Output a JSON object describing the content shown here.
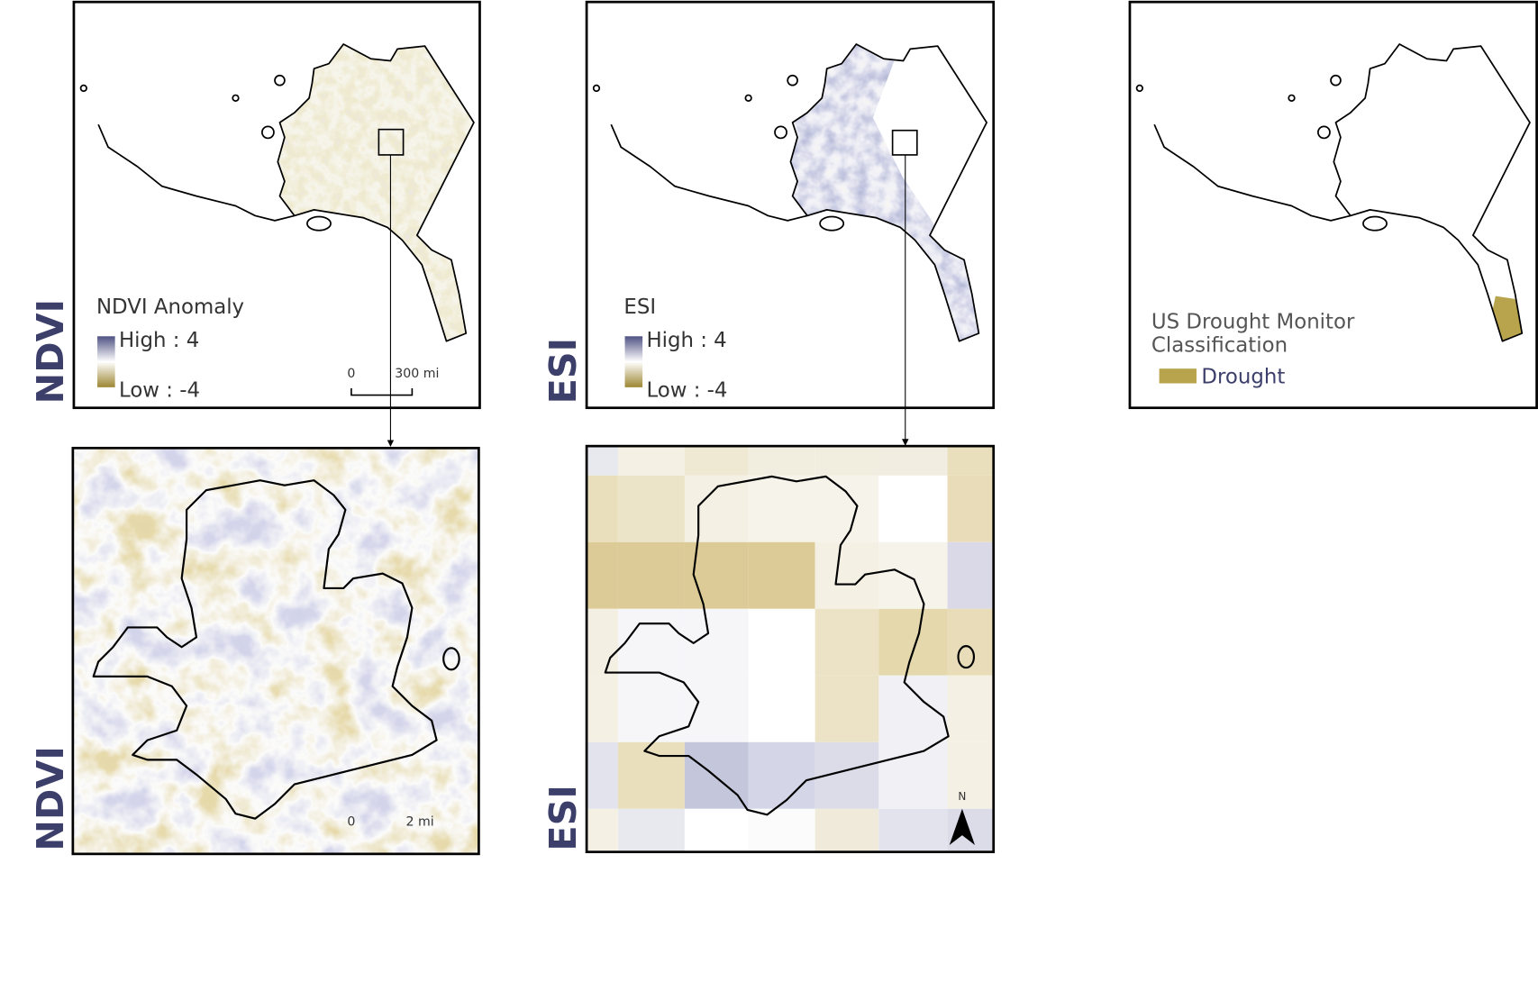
{
  "row_labels": {
    "top": [
      "NDVI",
      "ESI"
    ],
    "bottom": [
      "NDVI",
      "ESI"
    ]
  },
  "ndvi_overview": {
    "legend_title": "NDVI Anomaly",
    "legend_high": "High : 4",
    "legend_low": "Low : -4",
    "scale_labels": [
      "0",
      "300 mi"
    ]
  },
  "esi_overview": {
    "legend_title": "ESI",
    "legend_high": "High : 4",
    "legend_low": "Low : -4"
  },
  "usdm_overview": {
    "legend_title": [
      "US Drought Monitor",
      "Classification"
    ],
    "legend_item": "Drought"
  },
  "ndvi_detail": {
    "scale_labels": [
      "0",
      "2 mi"
    ]
  },
  "esi_detail": {
    "north_label": "N"
  }
}
